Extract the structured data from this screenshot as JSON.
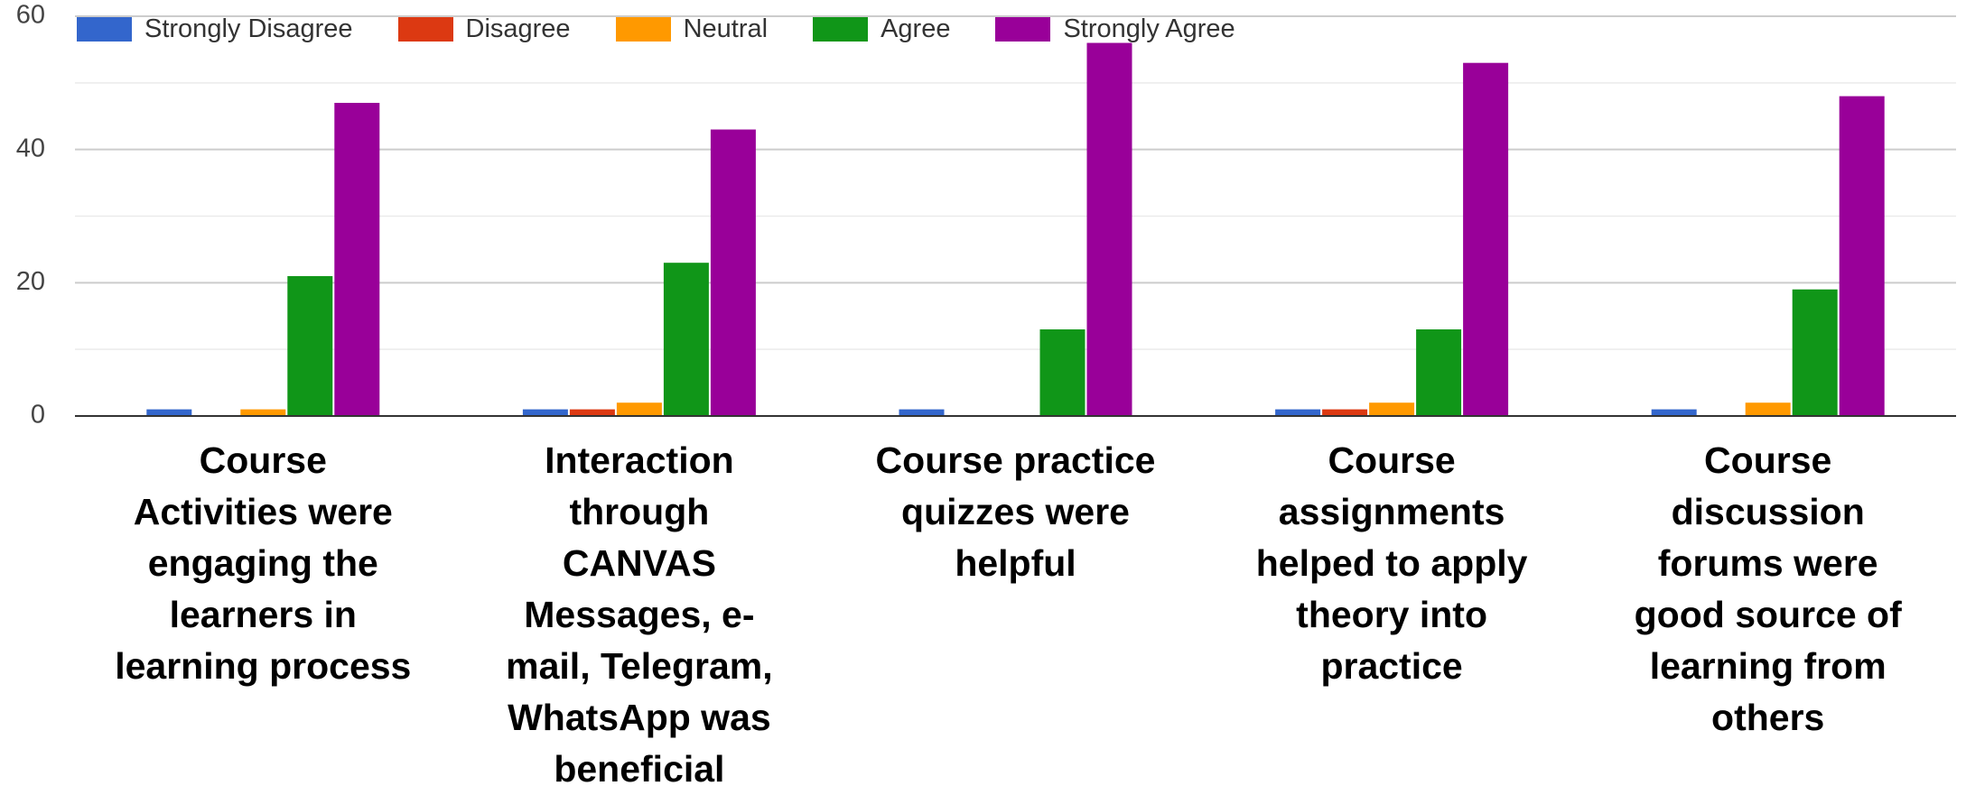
{
  "chart_data": {
    "type": "bar",
    "categories": [
      "Course Activities were engaging the learners in learning process",
      "Interaction through CANVAS Messages, e-mail, Telegram, WhatsApp was beneficial",
      "Course practice quizzes were helpful",
      "Course assignments helped to apply theory into practice",
      "Course discussion forums were good source of learning from others"
    ],
    "series": [
      {
        "name": "Strongly Disagree",
        "color": "#3366cc",
        "values": [
          1,
          1,
          1,
          1,
          1
        ]
      },
      {
        "name": "Disagree",
        "color": "#dc3912",
        "values": [
          0,
          1,
          0,
          1,
          0
        ]
      },
      {
        "name": "Neutral",
        "color": "#ff9900",
        "values": [
          1,
          2,
          0,
          2,
          2
        ]
      },
      {
        "name": "Agree",
        "color": "#109618",
        "values": [
          21,
          23,
          13,
          13,
          19
        ]
      },
      {
        "name": "Strongly Agree",
        "color": "#990099",
        "values": [
          47,
          43,
          56,
          53,
          48
        ]
      }
    ],
    "ylim": [
      0,
      60
    ],
    "yticks": [
      0,
      20,
      40,
      60
    ],
    "minor_yticks": [
      10,
      30,
      50
    ],
    "grid": true,
    "legend": "top"
  }
}
